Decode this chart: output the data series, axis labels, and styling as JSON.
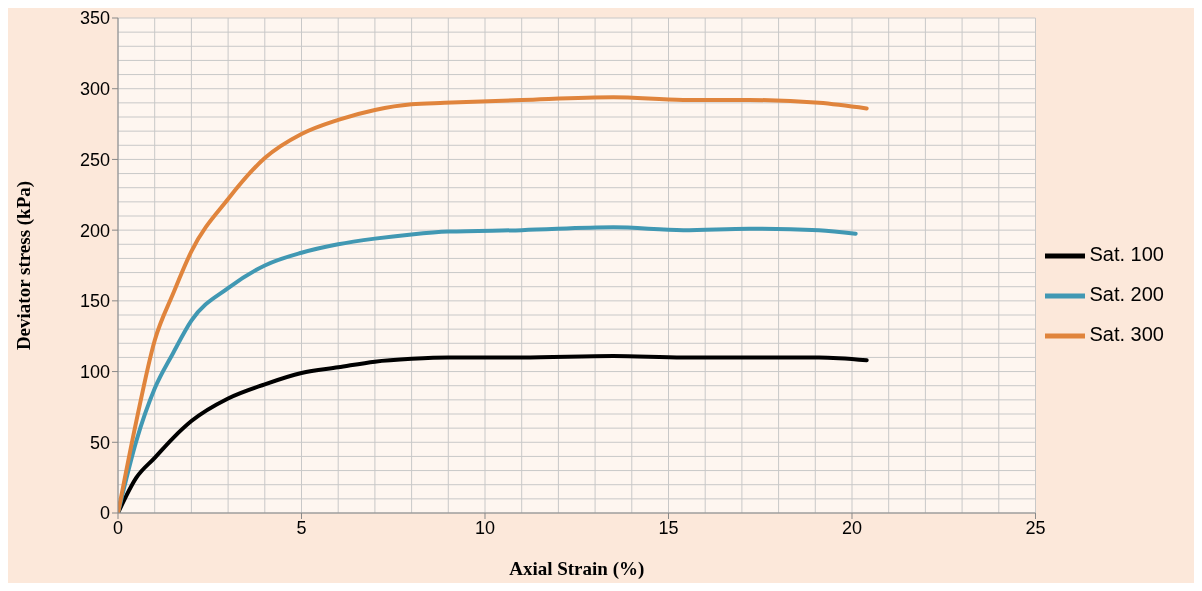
{
  "chart_data": {
    "type": "line",
    "xlabel": "Axial Strain (%)",
    "ylabel": "Deviator stress (kPa)",
    "xlim": [
      0,
      25
    ],
    "xticks": [
      0,
      5,
      10,
      15,
      20,
      25
    ],
    "ylim": [
      0,
      350
    ],
    "yticks": [
      0,
      50,
      100,
      150,
      200,
      250,
      300,
      350
    ],
    "grid": true,
    "legend": "right",
    "marker": "none",
    "line_style": "solid",
    "series": [
      {
        "name": "Sat. 100",
        "color": "#000000",
        "x": [
          0,
          0.5,
          1,
          1.5,
          2,
          3,
          4,
          5,
          6,
          7,
          8,
          9,
          11,
          13.5,
          15.4,
          17.2,
          19.1,
          20.4
        ],
        "values": [
          0,
          25,
          39,
          53,
          65,
          81,
          91,
          99,
          103,
          107,
          109,
          110,
          110,
          111,
          110,
          110,
          110,
          108
        ]
      },
      {
        "name": "Sat. 200",
        "color": "#4198b3",
        "x": [
          0,
          0.5,
          1,
          1.5,
          2,
          3,
          4,
          5,
          6,
          7,
          8,
          9,
          11,
          13.5,
          15.4,
          17.2,
          19.1,
          20.1
        ],
        "values": [
          0,
          51,
          88,
          113,
          136,
          159,
          175,
          184,
          190,
          194,
          197,
          199,
          200,
          202,
          200,
          201,
          200,
          197.5
        ]
      },
      {
        "name": "Sat. 300",
        "color": "#e0843c",
        "x": [
          0,
          0.5,
          1,
          1.5,
          2,
          3,
          4,
          5,
          6,
          7,
          8,
          8.9,
          11,
          13.5,
          15.4,
          17.2,
          19.1,
          20.4
        ],
        "values": [
          0,
          65,
          122,
          155,
          185,
          222,
          251,
          268,
          278,
          285,
          289,
          290,
          292,
          294,
          292,
          292,
          290,
          286
        ]
      }
    ]
  }
}
